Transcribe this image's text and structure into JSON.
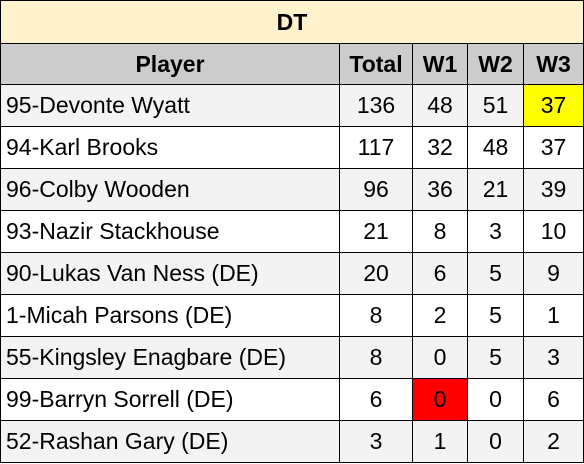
{
  "table": {
    "title": "DT",
    "headers": [
      "Player",
      "Total",
      "W1",
      "W2",
      "W3"
    ],
    "rows": [
      [
        "95-Devonte Wyatt",
        "136",
        "48",
        "51",
        "37"
      ],
      [
        "94-Karl Brooks",
        "117",
        "32",
        "48",
        "37"
      ],
      [
        "96-Colby Wooden",
        "96",
        "36",
        "21",
        "39"
      ],
      [
        "93-Nazir Stackhouse",
        "21",
        "8",
        "3",
        "10"
      ],
      [
        "90-Lukas Van Ness (DE)",
        "20",
        "6",
        "5",
        "9"
      ],
      [
        "1-Micah Parsons (DE)",
        "8",
        "2",
        "5",
        "1"
      ],
      [
        "55-Kingsley Enagbare (DE)",
        "8",
        "0",
        "5",
        "3"
      ],
      [
        "99-Barryn Sorrell (DE)",
        "6",
        "0",
        "0",
        "6"
      ],
      [
        "52-Rashan Gary (DE)",
        "3",
        "1",
        "0",
        "2"
      ]
    ],
    "colors": {
      "title_bg": "#fff2cc",
      "header_bg": "#cccccc",
      "highlight_yellow": "#ffff00",
      "highlight_red": "#ff0000"
    }
  }
}
